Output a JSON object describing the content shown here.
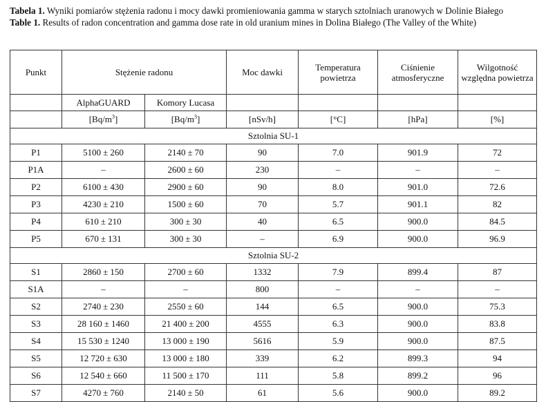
{
  "caption_pl": {
    "label": "Tabela 1.",
    "text": "Wyniki pomiarów stężenia radonu i mocy dawki promieniowania gamma w starych sztolniach uranowych w Dolinie Białego"
  },
  "caption_en": {
    "label": "Table 1.",
    "text": "Results of radon concentration and gamma dose rate in old uranium mines in Dolina Białego (The Valley of the White)"
  },
  "header": {
    "point": "Punkt",
    "radon": "Stężenie radonu",
    "dose": "Moc dawki",
    "temp": "Temperatura powietrza",
    "pressure": "Ciśnienie atmosferyczne",
    "humidity": "Wilgotność względna powietrza",
    "alphaguard": "AlphaGUARD",
    "lucas": "Komory Lucasa",
    "unit_radon_a": "[Bq/m",
    "unit_radon_b": "[Bq/m",
    "unit_sup": "3",
    "unit_close": "]",
    "unit_dose": "[nSv/h]",
    "unit_temp": "[°C]",
    "unit_pressure": "[hPa]",
    "unit_humidity": "[%]"
  },
  "sections": [
    {
      "title": "Sztolnia SU-1",
      "rows": [
        {
          "point": "P1",
          "ag": "5100",
          "ag_u": "260",
          "lc": "2140",
          "lc_u": "70",
          "dose": "90",
          "temp": "7.0",
          "press": "901.9",
          "hum": "72"
        },
        {
          "point": "P1A",
          "ag": "–",
          "ag_u": "",
          "lc": "2600",
          "lc_u": "60",
          "dose": "230",
          "temp": "–",
          "press": "–",
          "hum": "–"
        },
        {
          "point": "P2",
          "ag": "6100",
          "ag_u": "430",
          "lc": "2900",
          "lc_u": "60",
          "dose": "90",
          "temp": "8.0",
          "press": "901.0",
          "hum": "72.6"
        },
        {
          "point": "P3",
          "ag": "4230",
          "ag_u": "210",
          "lc": "1500",
          "lc_u": "60",
          "dose": "70",
          "temp": "5.7",
          "press": "901.1",
          "hum": "82"
        },
        {
          "point": "P4",
          "ag": "610",
          "ag_u": "210",
          "lc": "300",
          "lc_u": "30",
          "dose": "40",
          "temp": "6.5",
          "press": "900.0",
          "hum": "84.5"
        },
        {
          "point": "P5",
          "ag": "670",
          "ag_u": "131",
          "lc": "300",
          "lc_u": "30",
          "dose": "–",
          "temp": "6.9",
          "press": "900.0",
          "hum": "96.9"
        }
      ]
    },
    {
      "title": "Sztolnia SU-2",
      "rows": [
        {
          "point": "S1",
          "ag": "2860",
          "ag_u": "150",
          "lc": "2700",
          "lc_u": "60",
          "dose": "1332",
          "temp": "7.9",
          "press": "899.4",
          "hum": "87"
        },
        {
          "point": "S1A",
          "ag": "–",
          "ag_u": "",
          "lc": "–",
          "lc_u": "",
          "dose": "800",
          "temp": "–",
          "press": "–",
          "hum": "–"
        },
        {
          "point": "S2",
          "ag": "2740",
          "ag_u": "230",
          "lc": "2550",
          "lc_u": "60",
          "dose": "144",
          "temp": "6.5",
          "press": "900.0",
          "hum": "75.3"
        },
        {
          "point": "S3",
          "ag": "28 160",
          "ag_u": "1460",
          "lc": "21 400",
          "lc_u": "200",
          "dose": "4555",
          "temp": "6.3",
          "press": "900.0",
          "hum": "83.8"
        },
        {
          "point": "S4",
          "ag": "15 530",
          "ag_u": "1240",
          "lc": "13 000",
          "lc_u": "190",
          "dose": "5616",
          "temp": "5.9",
          "press": "900.0",
          "hum": "87.5"
        },
        {
          "point": "S5",
          "ag": "12 720",
          "ag_u": "630",
          "lc": "13 000",
          "lc_u": "180",
          "dose": "339",
          "temp": "6.2",
          "press": "899.3",
          "hum": "94"
        },
        {
          "point": "S6",
          "ag": "12 540",
          "ag_u": "660",
          "lc": "11 500",
          "lc_u": "170",
          "dose": "111",
          "temp": "5.8",
          "press": "899.2",
          "hum": "96"
        },
        {
          "point": "S7",
          "ag": "4270",
          "ag_u": "760",
          "lc": "2140",
          "lc_u": "50",
          "dose": "61",
          "temp": "5.6",
          "press": "900.0",
          "hum": "89.2"
        }
      ]
    }
  ],
  "pm_symbol": "±"
}
